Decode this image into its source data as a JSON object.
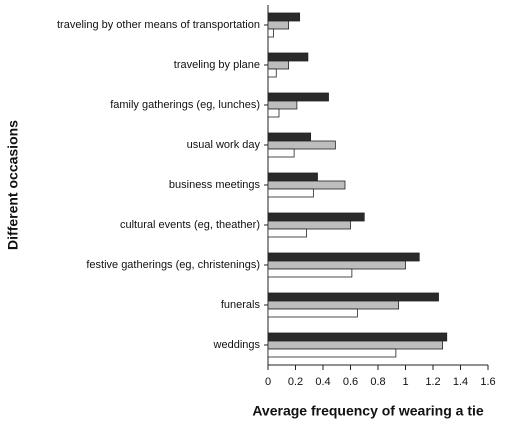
{
  "chart_data": {
    "type": "bar",
    "orientation": "horizontal",
    "xlabel": "Average frequency of wearing a tie",
    "ylabel": "Different occasions",
    "categories": [
      "traveling by other means of transportation",
      "traveling by plane",
      "family gatherings (eg, lunches)",
      "usual work day",
      "business meetings",
      "cultural events (eg, theather)",
      "festive gatherings (eg, christenings)",
      "funerals",
      "weddings"
    ],
    "series": [
      {
        "color": "#2b2b2b",
        "values": [
          0.23,
          0.29,
          0.44,
          0.31,
          0.36,
          0.7,
          1.1,
          1.24,
          1.3
        ]
      },
      {
        "color": "#bdbdbd",
        "values": [
          0.15,
          0.15,
          0.21,
          0.49,
          0.56,
          0.6,
          1.0,
          0.95,
          1.27
        ]
      },
      {
        "color": "#ffffff",
        "values": [
          0.04,
          0.06,
          0.08,
          0.19,
          0.33,
          0.28,
          0.61,
          0.65,
          0.93
        ]
      }
    ],
    "xlim": [
      0,
      1.6
    ],
    "xticks": [
      0,
      0.2,
      0.4,
      0.6,
      0.8,
      1,
      1.2,
      1.4,
      1.6
    ],
    "grid": false
  }
}
